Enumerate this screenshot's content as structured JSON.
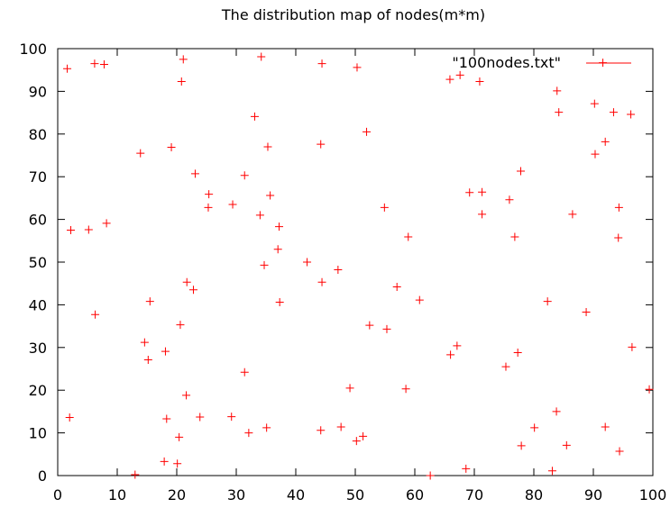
{
  "chart_data": {
    "type": "scatter",
    "title": "The distribution map of nodes(m*m)",
    "xlabel": "",
    "ylabel": "",
    "xlim": [
      0,
      100
    ],
    "ylim": [
      0,
      100
    ],
    "x_ticks": [
      "0",
      "10",
      "20",
      "30",
      "40",
      "50",
      "60",
      "70",
      "80",
      "90",
      "100"
    ],
    "y_ticks": [
      "0",
      "10",
      "20",
      "30",
      "40",
      "50",
      "60",
      "70",
      "80",
      "90",
      "100"
    ],
    "grid": false,
    "legend_position": "top-right",
    "marker": "+",
    "color": "#ff0000",
    "series": [
      {
        "name": "\"100nodes.txt\"",
        "points": [
          [
            1.6,
            95.3
          ],
          [
            6.2,
            96.5
          ],
          [
            7.8,
            96.3
          ],
          [
            21.1,
            97.5
          ],
          [
            20.8,
            92.3
          ],
          [
            34.2,
            98.1
          ],
          [
            44.4,
            96.5
          ],
          [
            50.3,
            95.6
          ],
          [
            65.9,
            92.8
          ],
          [
            67.6,
            93.8
          ],
          [
            70.9,
            92.3
          ],
          [
            91.6,
            96.7
          ],
          [
            83.9,
            90.1
          ],
          [
            84.2,
            85.1
          ],
          [
            90.2,
            87.1
          ],
          [
            93.4,
            85.1
          ],
          [
            96.3,
            84.6
          ],
          [
            33.1,
            84.1
          ],
          [
            51.9,
            80.5
          ],
          [
            13.9,
            75.5
          ],
          [
            19.1,
            76.9
          ],
          [
            35.3,
            77.0
          ],
          [
            44.2,
            77.6
          ],
          [
            92.0,
            78.2
          ],
          [
            90.3,
            75.3
          ],
          [
            77.8,
            71.3
          ],
          [
            23.1,
            70.7
          ],
          [
            31.4,
            70.3
          ],
          [
            25.4,
            65.9
          ],
          [
            35.7,
            65.6
          ],
          [
            69.2,
            66.3
          ],
          [
            71.3,
            66.4
          ],
          [
            75.9,
            64.6
          ],
          [
            25.3,
            62.8
          ],
          [
            29.4,
            63.5
          ],
          [
            54.9,
            62.8
          ],
          [
            71.3,
            61.2
          ],
          [
            86.5,
            61.2
          ],
          [
            94.3,
            62.8
          ],
          [
            2.2,
            57.5
          ],
          [
            5.2,
            57.6
          ],
          [
            8.2,
            59.1
          ],
          [
            34.0,
            61.0
          ],
          [
            37.2,
            58.3
          ],
          [
            58.9,
            55.9
          ],
          [
            76.8,
            55.9
          ],
          [
            94.2,
            55.7
          ],
          [
            37.0,
            53.0
          ],
          [
            34.7,
            49.3
          ],
          [
            41.9,
            50.0
          ],
          [
            47.1,
            48.2
          ],
          [
            21.7,
            45.3
          ],
          [
            22.8,
            43.5
          ],
          [
            44.4,
            45.3
          ],
          [
            57.0,
            44.2
          ],
          [
            15.5,
            40.8
          ],
          [
            37.3,
            40.6
          ],
          [
            60.8,
            41.1
          ],
          [
            82.3,
            40.8
          ],
          [
            6.3,
            37.7
          ],
          [
            88.8,
            38.3
          ],
          [
            20.6,
            35.3
          ],
          [
            52.4,
            35.2
          ],
          [
            55.3,
            34.3
          ],
          [
            14.6,
            31.2
          ],
          [
            18.1,
            29.1
          ],
          [
            15.2,
            27.1
          ],
          [
            67.1,
            30.4
          ],
          [
            66.0,
            28.3
          ],
          [
            77.3,
            28.8
          ],
          [
            96.5,
            30.1
          ],
          [
            75.3,
            25.5
          ],
          [
            31.4,
            24.2
          ],
          [
            21.6,
            18.8
          ],
          [
            49.1,
            20.5
          ],
          [
            58.5,
            20.3
          ],
          [
            99.4,
            20.2
          ],
          [
            2.0,
            13.6
          ],
          [
            18.3,
            13.3
          ],
          [
            23.9,
            13.7
          ],
          [
            29.2,
            13.8
          ],
          [
            83.8,
            15.0
          ],
          [
            32.1,
            10.0
          ],
          [
            35.1,
            11.2
          ],
          [
            44.2,
            10.6
          ],
          [
            47.6,
            11.4
          ],
          [
            50.2,
            8.1
          ],
          [
            51.3,
            9.2
          ],
          [
            20.4,
            9.0
          ],
          [
            80.1,
            11.2
          ],
          [
            92.0,
            11.4
          ],
          [
            77.9,
            7.0
          ],
          [
            85.5,
            7.1
          ],
          [
            94.4,
            5.7
          ],
          [
            17.9,
            3.3
          ],
          [
            20.1,
            2.8
          ],
          [
            13.0,
            0.2
          ],
          [
            62.6,
            0.0
          ],
          [
            68.6,
            1.6
          ],
          [
            83.1,
            1.1
          ]
        ]
      }
    ]
  }
}
